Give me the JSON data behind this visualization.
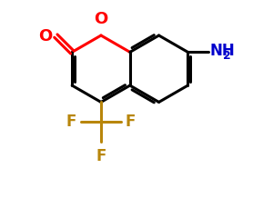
{
  "bg_color": "#ffffff",
  "bond_color": "#000000",
  "oxygen_color": "#ff0000",
  "nitrogen_color": "#0000cc",
  "fluorine_color": "#b8860b",
  "bond_width": 2.2,
  "figsize": [
    3.0,
    2.18
  ],
  "dpi": 100,
  "xlim": [
    -0.5,
    9.5
  ],
  "ylim": [
    -3.0,
    6.5
  ]
}
